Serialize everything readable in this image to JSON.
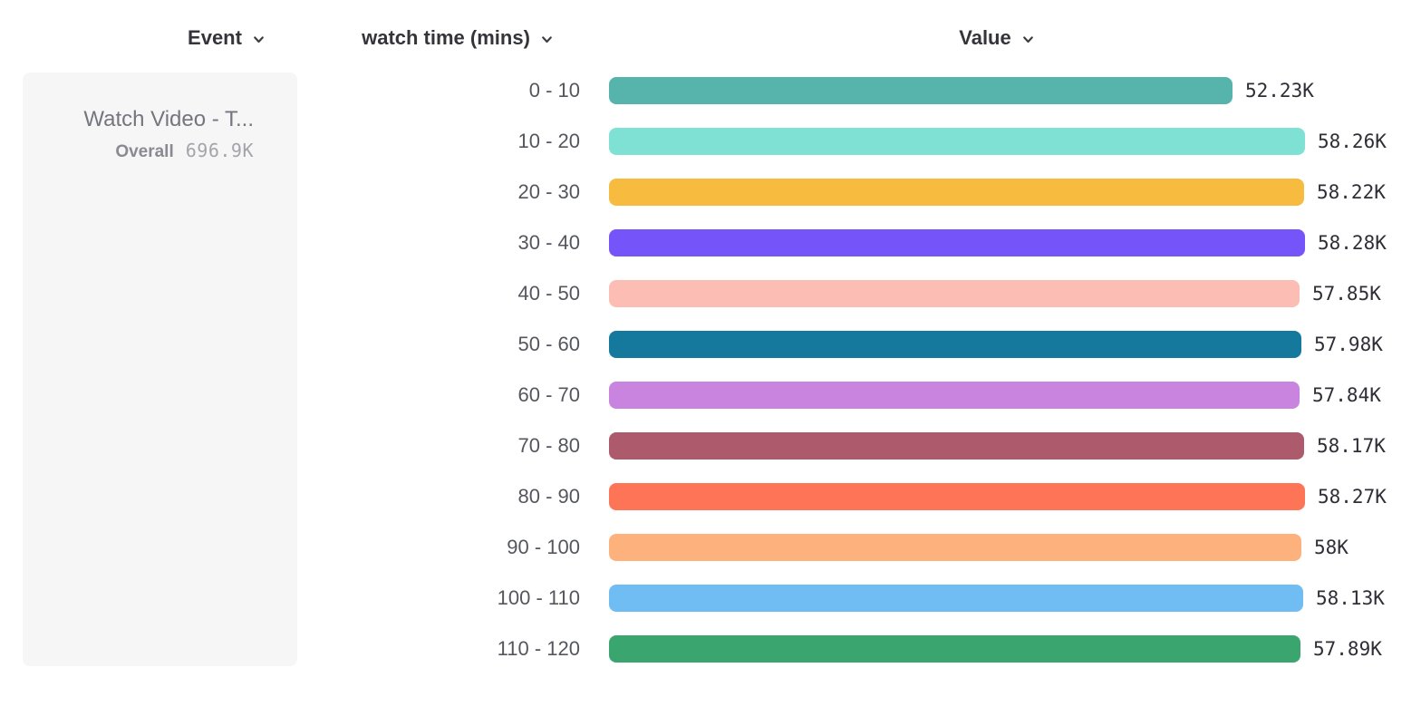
{
  "headers": {
    "event": {
      "label": "Event"
    },
    "breakdown": {
      "label": "watch time (mins)"
    },
    "value": {
      "label": "Value"
    },
    "chevron_icon": "chevron-down-icon"
  },
  "event_card": {
    "name": "Watch Video - T...",
    "overall_label": "Overall",
    "overall_value": "696.9K"
  },
  "chart_data": {
    "type": "bar",
    "orientation": "horizontal",
    "title": "",
    "xlabel": "watch time (mins)",
    "ylabel": "Value",
    "categories": [
      "0 - 10",
      "10 - 20",
      "20 - 30",
      "30 - 40",
      "40 - 50",
      "50 - 60",
      "60 - 70",
      "70 - 80",
      "80 - 90",
      "90 - 100",
      "100 - 110",
      "110 - 120"
    ],
    "values": [
      52230,
      58260,
      58220,
      58280,
      57850,
      57980,
      57840,
      58170,
      58270,
      58000,
      58130,
      57890
    ],
    "value_labels": [
      "52.23K",
      "58.26K",
      "58.22K",
      "58.28K",
      "57.85K",
      "57.98K",
      "57.84K",
      "58.17K",
      "58.27K",
      "58K",
      "58.13K",
      "57.89K"
    ],
    "colors": [
      "#57B4AD",
      "#7FE0D4",
      "#F7BC3F",
      "#7554FA",
      "#FCBDB4",
      "#15799E",
      "#C884DE",
      "#AE5A6D",
      "#FE7457",
      "#FDB27D",
      "#70BDF4",
      "#3BA56F"
    ],
    "xlim": [
      0,
      58280
    ],
    "grid": false,
    "legend": false
  }
}
